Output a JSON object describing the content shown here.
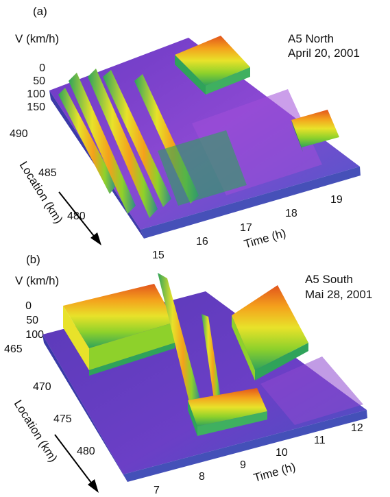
{
  "chart_data": [
    {
      "type": "surface",
      "panel_label": "(a)",
      "title_line1": "A5 North",
      "title_line2": "April 20, 2001",
      "zlabel": "V (km/h)",
      "z_ticks": [
        "0",
        "50",
        "100",
        "150"
      ],
      "ylabel": "Location (km)",
      "y_ticks": [
        "490",
        "485",
        "480"
      ],
      "xlabel": "Time (h)",
      "x_ticks": [
        "15",
        "16",
        "17",
        "18",
        "19"
      ],
      "time_range": [
        14.6,
        19.8
      ],
      "location_range": [
        493,
        477
      ],
      "speed_range": [
        0,
        150
      ],
      "free_flow_speed_kmh": 110,
      "congested_regions": [
        {
          "t_start": 14.9,
          "loc_start": 492,
          "t_end": 15.7,
          "loc_end": 478,
          "min_speed": 10
        },
        {
          "t_start": 15.3,
          "loc_start": 492,
          "t_end": 16.1,
          "loc_end": 479,
          "min_speed": 15
        },
        {
          "t_start": 15.7,
          "loc_start": 492,
          "t_end": 16.5,
          "loc_end": 479,
          "min_speed": 15
        },
        {
          "t_start": 16.2,
          "loc_start": 491,
          "t_end": 16.9,
          "loc_end": 481,
          "min_speed": 20
        },
        {
          "t_start": 16.7,
          "loc_start": 485,
          "t_end": 17.4,
          "loc_end": 480,
          "min_speed": 25
        },
        {
          "t_start": 17.0,
          "loc_start": 493,
          "t_end": 17.9,
          "loc_end": 489,
          "min_speed": 5
        },
        {
          "t_start": 18.9,
          "loc_start": 491,
          "t_end": 19.7,
          "loc_end": 487,
          "min_speed": 30
        }
      ],
      "colorscale": [
        "#5b2c9e",
        "#6e3fc8",
        "#4a6fd4",
        "#2fa35a",
        "#8ed12b",
        "#e8e22a",
        "#f4a11c",
        "#e2541c"
      ]
    },
    {
      "type": "surface",
      "panel_label": "(b)",
      "title_line1": "A5 South",
      "title_line2": "Mai 28, 2001",
      "zlabel": "V (km/h)",
      "z_ticks": [
        "0",
        "50",
        "100"
      ],
      "ylabel": "Location (km)",
      "y_ticks": [
        "465",
        "470",
        "475",
        "480"
      ],
      "xlabel": "Time (h)",
      "x_ticks": [
        "7",
        "8",
        "9",
        "10",
        "11",
        "12"
      ],
      "time_range": [
        6.5,
        12.2
      ],
      "location_range": [
        465,
        482
      ],
      "speed_range": [
        0,
        120
      ],
      "free_flow_speed_kmh": 110,
      "congested_regions": [
        {
          "t_start": 6.6,
          "loc_start": 465,
          "t_end": 8.4,
          "loc_end": 470,
          "min_speed": 5
        },
        {
          "t_start": 8.2,
          "loc_start": 465,
          "t_end": 8.8,
          "loc_end": 476,
          "min_speed": 5
        },
        {
          "t_start": 8.4,
          "loc_start": 476,
          "t_end": 10.2,
          "loc_end": 480,
          "min_speed": 20
        },
        {
          "t_start": 9.4,
          "loc_start": 466,
          "t_end": 9.6,
          "loc_end": 476,
          "min_speed": 30
        },
        {
          "t_start": 10.0,
          "loc_start": 465,
          "t_end": 11.6,
          "loc_end": 474,
          "min_speed": 10
        }
      ],
      "colorscale": [
        "#5b2c9e",
        "#6e3fc8",
        "#4a6fd4",
        "#2fa35a",
        "#8ed12b",
        "#e8e22a",
        "#f4a11c",
        "#e2541c"
      ]
    }
  ]
}
